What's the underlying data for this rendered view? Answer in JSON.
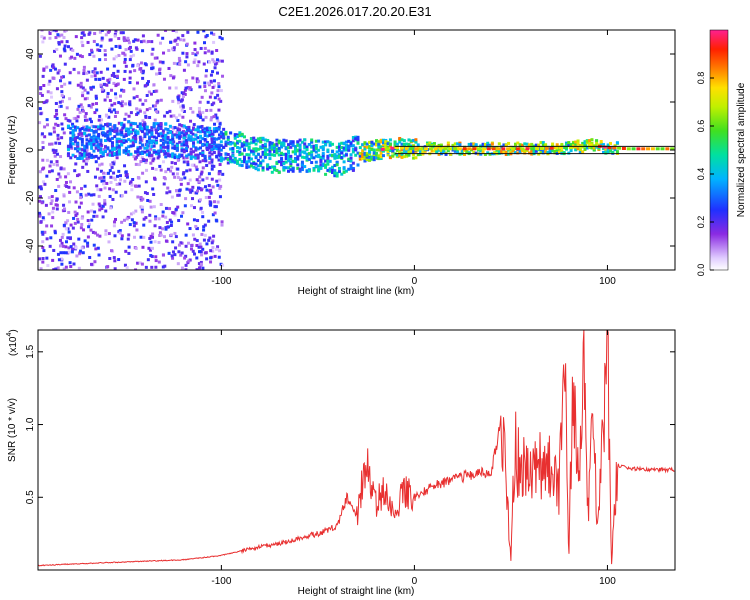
{
  "title": "C2E1.2026.017.20.20.E31",
  "colors": {
    "signal_line": "#e83030",
    "band_line": "#111111",
    "frame": "#000000"
  },
  "chart_data": [
    {
      "type": "heatmap",
      "name": "spectrogram",
      "xlabel": "Height of straight line (km)",
      "ylabel": "Frequency (Hz)",
      "xlim": [
        -195,
        135
      ],
      "ylim": [
        -50,
        50
      ],
      "xticks": [
        -100,
        0,
        100
      ],
      "xtick_labels": [
        "-100",
        "0",
        "100"
      ],
      "yticks": [
        -40,
        -20,
        0,
        20,
        40
      ],
      "ytick_labels": [
        "-40",
        "-20",
        "0",
        "20",
        "40"
      ],
      "band_lines_hz": [
        1.5,
        -1.5
      ],
      "ridge": {
        "description": "dominant frequency trace",
        "x": [
          -170,
          -150,
          -130,
          -110,
          -100,
          -90,
          -80,
          -70,
          -60,
          -50,
          -40,
          -30,
          -20,
          -10,
          0,
          20,
          40,
          60,
          80,
          90,
          100,
          110,
          135
        ],
        "y": [
          3,
          5,
          4,
          3,
          2,
          0,
          -2,
          -3,
          -2,
          -3,
          -4,
          -1,
          0,
          1,
          0.5,
          0.5,
          0.5,
          0.5,
          1,
          2,
          1,
          0.5,
          0.5
        ]
      },
      "colorbar": {
        "label": "Normalized spectral amplitude",
        "range": [
          0,
          1
        ],
        "ticks": [
          0.0,
          0.2,
          0.4,
          0.6,
          0.8
        ],
        "tick_labels": [
          "0.0",
          "0.2",
          "0.4",
          "0.6",
          "0.8"
        ]
      }
    },
    {
      "type": "line",
      "name": "snr",
      "xlabel": "Height of straight line (km)",
      "ylabel": "SNR (10 * v/v)",
      "scale_label": "(x10",
      "scale_exponent": "4",
      "xlim": [
        -195,
        135
      ],
      "ylim": [
        0,
        1.65
      ],
      "xticks": [
        -100,
        0,
        100
      ],
      "xtick_labels": [
        "-100",
        "0",
        "100"
      ],
      "yticks": [
        0.5,
        1.0,
        1.5
      ],
      "ytick_labels": [
        "0.5",
        "1.0",
        "1.5"
      ],
      "series": [
        {
          "name": "SNR",
          "x": [
            -195,
            -180,
            -160,
            -140,
            -120,
            -100,
            -90,
            -80,
            -70,
            -60,
            -50,
            -40,
            -35,
            -30,
            -25,
            -20,
            -15,
            -10,
            -5,
            0,
            10,
            20,
            30,
            40,
            45,
            50,
            52,
            55,
            60,
            65,
            70,
            75,
            78,
            80,
            82,
            85,
            88,
            90,
            92,
            95,
            98,
            100,
            102,
            105,
            110,
            120,
            135
          ],
          "y": [
            0.03,
            0.04,
            0.05,
            0.06,
            0.07,
            0.1,
            0.13,
            0.16,
            0.18,
            0.22,
            0.25,
            0.3,
            0.5,
            0.35,
            0.75,
            0.45,
            0.57,
            0.4,
            0.55,
            0.5,
            0.58,
            0.62,
            0.66,
            0.68,
            1.05,
            0.1,
            0.85,
            0.68,
            0.7,
            0.72,
            0.7,
            0.55,
            1.35,
            0.08,
            1.28,
            0.6,
            1.4,
            0.35,
            1.2,
            0.25,
            1.05,
            1.65,
            0.05,
            0.72,
            0.7,
            0.69,
            0.69
          ]
        }
      ]
    }
  ]
}
